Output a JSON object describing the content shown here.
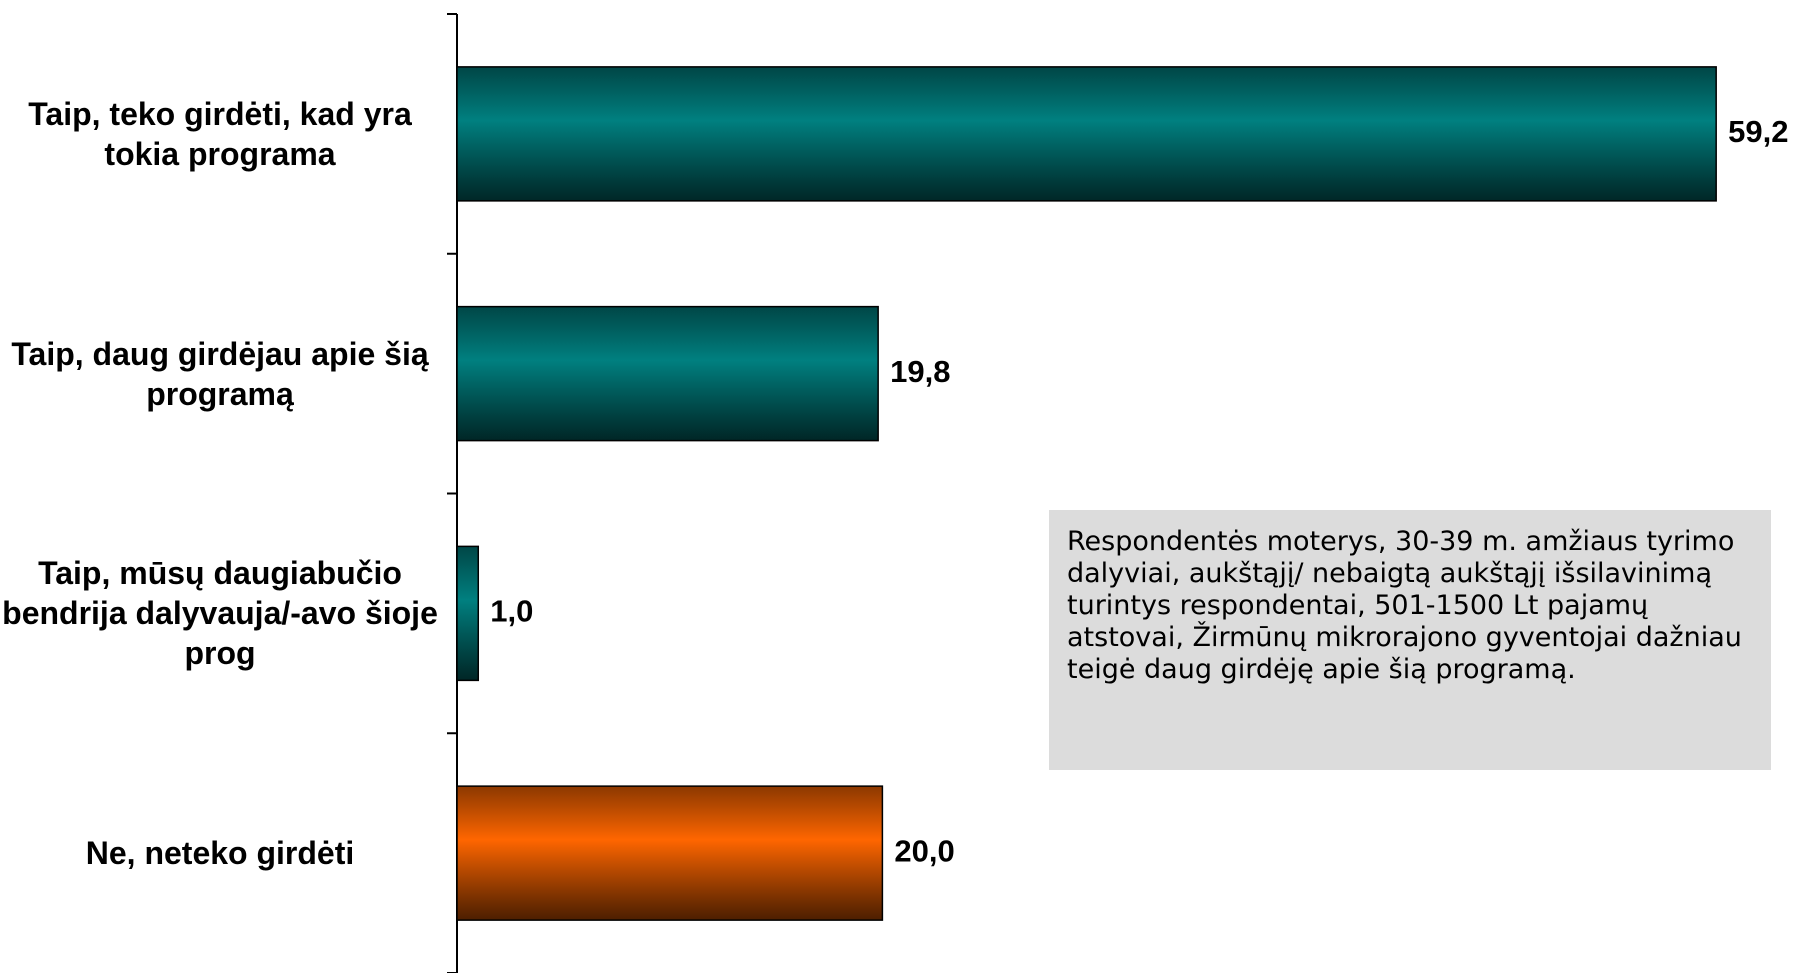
{
  "chart_data": {
    "type": "bar",
    "orientation": "horizontal",
    "categories": [
      "Taip, teko girdėti, kad yra tokia programa",
      "Taip, daug girdėjau apie šią programą",
      "Taip, mūsų daugiabučio bendrija dalyvauja/-avo šioje prog",
      "Ne, neteko girdėti"
    ],
    "values": [
      59.2,
      19.8,
      1.0,
      20.0
    ],
    "value_labels": [
      "59,2",
      "19,8",
      "1,0",
      "20,0"
    ],
    "colors": [
      "#008080",
      "#008080",
      "#008080",
      "#ff6600"
    ],
    "xlim": [
      0,
      63
    ],
    "annotation": "Respondentės moterys, 30-39 m. amžiaus tyrimo dalyviai, aukštąjį/ nebaigtą aukštąjį išsilavinimą turintys respondentai, 501-1500 Lt pajamų atstovai, Žirmūnų mikrorajono gyventojai dažniau teigė daug girdėję apie šią programą."
  }
}
